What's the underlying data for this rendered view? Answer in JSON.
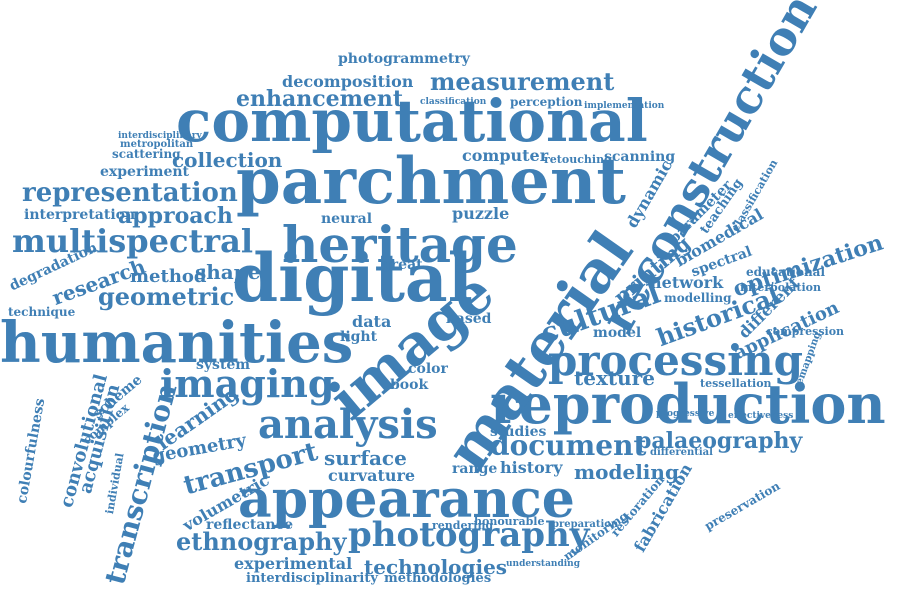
{
  "color": "#3f7fb5",
  "words": [
    "parchment",
    "computational",
    "humanities",
    "digital",
    "reproduction",
    "appearance",
    "material",
    "image",
    "heritage",
    "processing",
    "reconstruction",
    "analysis",
    "imaging",
    "multispectral",
    "representation",
    "measurement",
    "enhancement",
    "photography",
    "document",
    "palaeography",
    "cultural",
    "historical",
    "transport",
    "geometric",
    "collection",
    "approach",
    "modeling",
    "ethnography",
    "technologies",
    "photogrammetry",
    "decomposition",
    "surface",
    "history",
    "optimization",
    "transcription",
    "printing",
    "method",
    "shape",
    "learning",
    "research",
    "texture",
    "network",
    "dynamic",
    "application",
    "computer",
    "scanning",
    "experiment",
    "interpretation",
    "degradation",
    "acquisition",
    "convolutional",
    "colourfulness",
    "geometry",
    "curvature",
    "reflectance",
    "volumetric",
    "experimental",
    "interdisciplinarity",
    "methodologies",
    "fabrication",
    "modelling",
    "biomedical",
    "spectral",
    "different",
    "educational",
    "interpolation",
    "compression",
    "parameter",
    "teaching",
    "classification",
    "technique",
    "neural",
    "great",
    "light",
    "data",
    "system",
    "scheme",
    "complex",
    "individual",
    "model",
    "studies",
    "range",
    "book",
    "color",
    "based",
    "puzzle",
    "scattering",
    "metropolitan",
    "perception",
    "retouching",
    "tessellation",
    "remapping",
    "preservation",
    "restoration",
    "monitoring",
    "honourable",
    "rendering",
    "preparation",
    "understanding",
    "differential",
    "progressive",
    "effectiveness",
    "interdisciplinary",
    "classification",
    "implementation"
  ]
}
